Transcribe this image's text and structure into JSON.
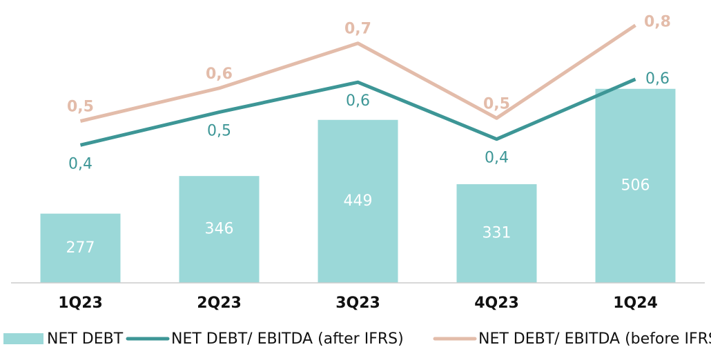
{
  "chart_data": {
    "type": "bar",
    "categories": [
      "1Q23",
      "2Q23",
      "3Q23",
      "4Q23",
      "1Q24"
    ],
    "series": [
      {
        "name": "NET DEBT",
        "type": "bar",
        "color": "#9bd8d8",
        "values": [
          277,
          346,
          449,
          331,
          506
        ]
      },
      {
        "name": "NET DEBT/ EBITDA (after IFRS)",
        "type": "line",
        "axis": "y2",
        "color": "#3d9696",
        "values": [
          0.39,
          0.5,
          0.6,
          0.41,
          0.61
        ],
        "value_labels": [
          "0,4",
          "0,5",
          "0,6",
          "0,4",
          "0,6"
        ]
      },
      {
        "name": "NET DEBT/ EBITDA (before IFRS)",
        "type": "line",
        "axis": "y2",
        "color": "#e3bcaa",
        "values": [
          0.47,
          0.58,
          0.73,
          0.48,
          0.79
        ],
        "value_labels": [
          "0,5",
          "0,6",
          "0,7",
          "0,5",
          "0,8"
        ]
      }
    ],
    "ylim": [
      150,
      650
    ],
    "y2lim": [
      -0.07,
      0.84
    ]
  }
}
